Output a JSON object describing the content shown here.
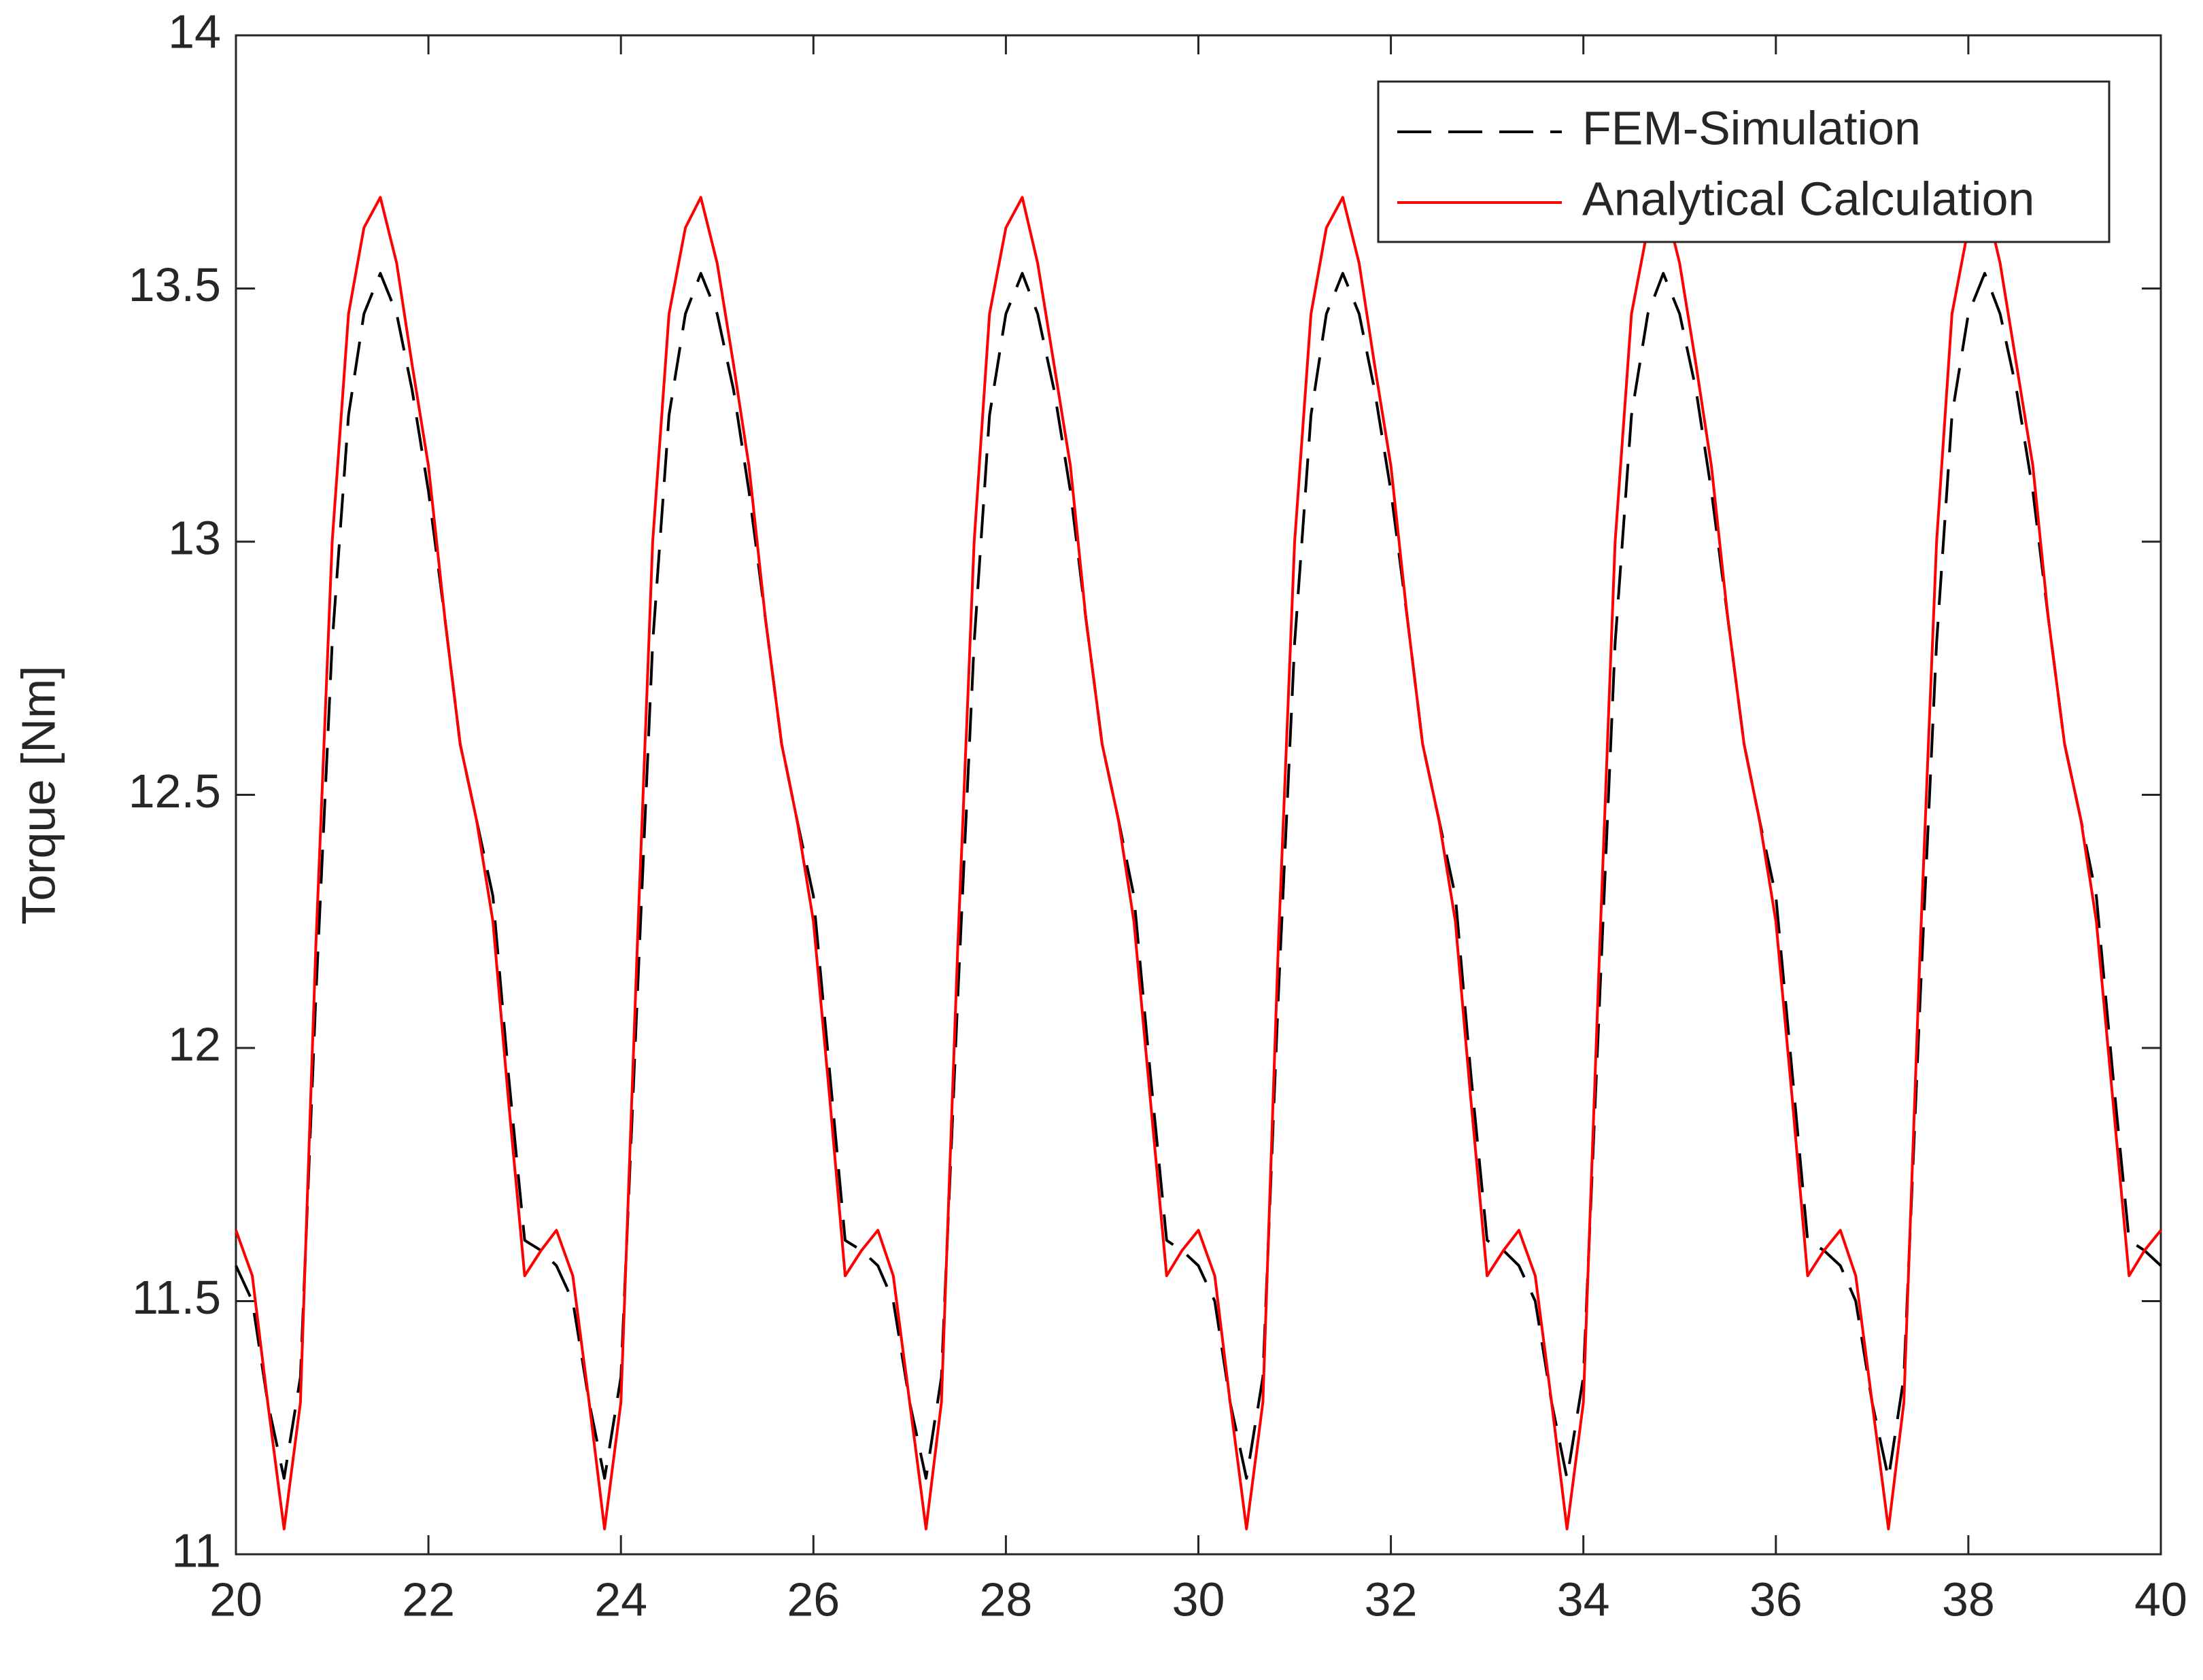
{
  "chart_data": {
    "type": "line",
    "ylabel": "Torque [Nm]",
    "xlim": [
      20,
      40
    ],
    "xticks": [
      20,
      22,
      24,
      26,
      28,
      30,
      32,
      34,
      36,
      38,
      40
    ],
    "ylim": [
      11,
      14
    ],
    "yticks": [
      11,
      11.5,
      12,
      12.5,
      13,
      13.5,
      14
    ],
    "legend": "top-right",
    "x": [
      20,
      20.17,
      20.33,
      20.5,
      20.67,
      20.83,
      21,
      21.17,
      21.33,
      21.5,
      21.67,
      21.83,
      22,
      22.17,
      22.33,
      22.5,
      22.67,
      22.83,
      23,
      23.17,
      23.33,
      23.5,
      23.67,
      23.83,
      24,
      24.17,
      24.33,
      24.5,
      24.67,
      24.83,
      25,
      25.17,
      25.33,
      25.5,
      25.67,
      25.83,
      26,
      26.17,
      26.33,
      26.5,
      26.67,
      26.83,
      27,
      27.17,
      27.33,
      27.5,
      27.67,
      27.83,
      28,
      28.17,
      28.33,
      28.5,
      28.67,
      28.83,
      29,
      29.17,
      29.33,
      29.5,
      29.67,
      29.83,
      30,
      30.17,
      30.33,
      30.5,
      30.67,
      30.83,
      31,
      31.17,
      31.33,
      31.5,
      31.67,
      31.83,
      32,
      32.17,
      32.33,
      32.5,
      32.67,
      32.83,
      33,
      33.17,
      33.33,
      33.5,
      33.67,
      33.83,
      34,
      34.17,
      34.33,
      34.5,
      34.67,
      34.83,
      35,
      35.17,
      35.33,
      35.5,
      35.67,
      35.83,
      36,
      36.17,
      36.33,
      36.5,
      36.67,
      36.83,
      37,
      37.17,
      37.33,
      37.5,
      37.67,
      37.83,
      38,
      38.17,
      38.33,
      38.5,
      38.67,
      38.83,
      39,
      39.17,
      39.33,
      39.5,
      39.67,
      39.83,
      40
    ],
    "series": [
      {
        "name": "FEM-Simulation",
        "color": "#000000",
        "dashed": true,
        "values": [
          11.57,
          11.5,
          11.3,
          11.15,
          11.35,
          12.1,
          12.8,
          13.25,
          13.45,
          13.53,
          13.45,
          13.3,
          13.1,
          12.85,
          12.6,
          12.45,
          12.3,
          11.95,
          11.62,
          11.6,
          11.57,
          11.5,
          11.3,
          11.15,
          11.35,
          12.1,
          12.8,
          13.25,
          13.45,
          13.53,
          13.45,
          13.3,
          13.1,
          12.85,
          12.6,
          12.45,
          12.3,
          11.95,
          11.62,
          11.6,
          11.57,
          11.5,
          11.3,
          11.15,
          11.35,
          12.1,
          12.8,
          13.25,
          13.45,
          13.53,
          13.45,
          13.3,
          13.1,
          12.85,
          12.6,
          12.45,
          12.3,
          11.95,
          11.62,
          11.6,
          11.57,
          11.5,
          11.3,
          11.15,
          11.35,
          12.1,
          12.8,
          13.25,
          13.45,
          13.53,
          13.45,
          13.3,
          13.1,
          12.85,
          12.6,
          12.45,
          12.3,
          11.95,
          11.62,
          11.6,
          11.57,
          11.5,
          11.3,
          11.15,
          11.35,
          12.1,
          12.8,
          13.25,
          13.45,
          13.53,
          13.45,
          13.3,
          13.1,
          12.85,
          12.6,
          12.45,
          12.3,
          11.95,
          11.62,
          11.6,
          11.57,
          11.5,
          11.3,
          11.15,
          11.35,
          12.1,
          12.8,
          13.25,
          13.45,
          13.53,
          13.45,
          13.3,
          13.1,
          12.85,
          12.6,
          12.45,
          12.3,
          11.95,
          11.62,
          11.6,
          11.57
        ]
      },
      {
        "name": "Analytical Calculation",
        "color": "#ff0000",
        "dashed": false,
        "values": [
          11.64,
          11.55,
          11.3,
          11.05,
          11.3,
          12.2,
          13.0,
          13.45,
          13.62,
          13.68,
          13.55,
          13.35,
          13.15,
          12.85,
          12.6,
          12.45,
          12.25,
          11.9,
          11.55,
          11.6,
          11.64,
          11.55,
          11.3,
          11.05,
          11.3,
          12.2,
          13.0,
          13.45,
          13.62,
          13.68,
          13.55,
          13.35,
          13.15,
          12.85,
          12.6,
          12.45,
          12.25,
          11.9,
          11.55,
          11.6,
          11.64,
          11.55,
          11.3,
          11.05,
          11.3,
          12.2,
          13.0,
          13.45,
          13.62,
          13.68,
          13.55,
          13.35,
          13.15,
          12.85,
          12.6,
          12.45,
          12.25,
          11.9,
          11.55,
          11.6,
          11.64,
          11.55,
          11.3,
          11.05,
          11.3,
          12.2,
          13.0,
          13.45,
          13.62,
          13.68,
          13.55,
          13.35,
          13.15,
          12.85,
          12.6,
          12.45,
          12.25,
          11.9,
          11.55,
          11.6,
          11.64,
          11.55,
          11.3,
          11.05,
          11.3,
          12.2,
          13.0,
          13.45,
          13.62,
          13.68,
          13.55,
          13.35,
          13.15,
          12.85,
          12.6,
          12.45,
          12.25,
          11.9,
          11.55,
          11.6,
          11.64,
          11.55,
          11.3,
          11.05,
          11.3,
          12.2,
          13.0,
          13.45,
          13.62,
          13.68,
          13.55,
          13.35,
          13.15,
          12.85,
          12.6,
          12.45,
          12.25,
          11.9,
          11.55,
          11.6,
          11.64
        ]
      }
    ]
  }
}
